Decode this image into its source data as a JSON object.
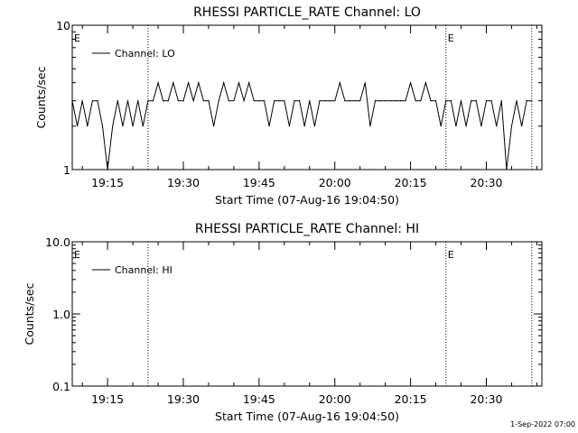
{
  "footer": {
    "timestamp": "1-Sep-2022 07:00"
  },
  "chart_data": [
    {
      "type": "line",
      "scale": "log",
      "title": "RHESSI PARTICLE_RATE Channel: LO",
      "xlabel": "Start Time (07-Aug-16 19:04:50)",
      "ylabel": "Counts/sec",
      "xlim": [
        "19:08",
        "20:41"
      ],
      "ylim": [
        1,
        10
      ],
      "x_ticks": [
        "19:15",
        "19:30",
        "19:45",
        "20:00",
        "20:15",
        "20:30"
      ],
      "y_ticks": [
        "1",
        "10"
      ],
      "markers": {
        "dotted_lines": [
          "19:23",
          "20:22",
          "20:39"
        ],
        "letter": "E",
        "letter_at": [
          "19:08",
          "20:22"
        ]
      },
      "legend": {
        "label": "Channel: LO",
        "placement": "top-left"
      },
      "series": [
        {
          "name": "Channel: LO",
          "x": [
            "19:08",
            "19:09",
            "19:10",
            "19:11",
            "19:12",
            "19:13",
            "19:14",
            "19:15",
            "19:16",
            "19:17",
            "19:18",
            "19:19",
            "19:20",
            "19:21",
            "19:22",
            "19:23",
            "19:24",
            "19:25",
            "19:26",
            "19:27",
            "19:28",
            "19:29",
            "19:30",
            "19:31",
            "19:32",
            "19:33",
            "19:34",
            "19:35",
            "19:36",
            "19:37",
            "19:38",
            "19:39",
            "19:40",
            "19:41",
            "19:42",
            "19:43",
            "19:44",
            "19:45",
            "19:46",
            "19:47",
            "19:48",
            "19:49",
            "19:50",
            "19:51",
            "19:52",
            "19:53",
            "19:54",
            "19:55",
            "19:56",
            "19:57",
            "19:58",
            "19:59",
            "20:00",
            "20:01",
            "20:02",
            "20:03",
            "20:04",
            "20:05",
            "20:06",
            "20:07",
            "20:08",
            "20:09",
            "20:10",
            "20:11",
            "20:12",
            "20:13",
            "20:14",
            "20:15",
            "20:16",
            "20:17",
            "20:18",
            "20:19",
            "20:20",
            "20:21",
            "20:22",
            "20:23",
            "20:24",
            "20:25",
            "20:26",
            "20:27",
            "20:28",
            "20:29",
            "20:30",
            "20:31",
            "20:32",
            "20:33",
            "20:34",
            "20:35",
            "20:36",
            "20:37",
            "20:38",
            "20:39"
          ],
          "y": [
            3,
            2,
            3,
            2,
            3,
            3,
            2,
            1,
            2,
            3,
            2,
            3,
            2,
            3,
            2,
            3,
            3,
            4,
            3,
            3,
            4,
            3,
            3,
            4,
            3,
            4,
            3,
            3,
            2,
            3,
            4,
            3,
            3,
            4,
            3,
            4,
            3,
            3,
            3,
            2,
            3,
            3,
            3,
            2,
            3,
            3,
            2,
            3,
            2,
            3,
            3,
            3,
            3,
            4,
            3,
            3,
            3,
            3,
            4,
            2,
            3,
            3,
            3,
            3,
            3,
            3,
            3,
            4,
            3,
            3,
            4,
            3,
            3,
            2,
            3,
            3,
            2,
            3,
            2,
            3,
            3,
            2,
            3,
            3,
            2,
            3,
            1,
            2,
            3,
            2,
            3,
            3
          ]
        }
      ]
    },
    {
      "type": "line",
      "scale": "log",
      "title": "RHESSI PARTICLE_RATE Channel: HI",
      "xlabel": "Start Time (07-Aug-16 19:04:50)",
      "ylabel": "Counts/sec",
      "xlim": [
        "19:08",
        "20:41"
      ],
      "ylim": [
        0.1,
        10
      ],
      "x_ticks": [
        "19:15",
        "19:30",
        "19:45",
        "20:00",
        "20:15",
        "20:30"
      ],
      "y_ticks": [
        "0.1",
        "1.0",
        "10.0"
      ],
      "markers": {
        "dotted_lines": [
          "19:23",
          "20:22",
          "20:39"
        ],
        "letter": "E",
        "letter_at": [
          "19:08",
          "20:22"
        ]
      },
      "legend": {
        "label": "Channel: HI",
        "placement": "top-left"
      },
      "series": [
        {
          "name": "Channel: HI",
          "x": [],
          "y": []
        }
      ]
    }
  ]
}
